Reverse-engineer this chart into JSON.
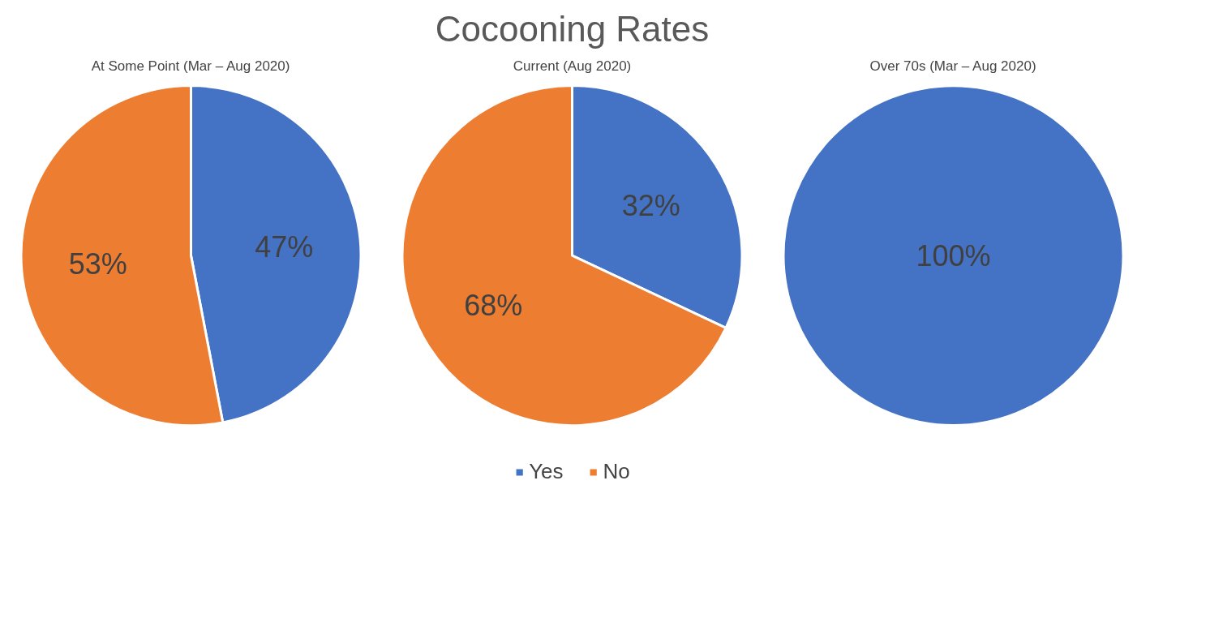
{
  "chart_data": [
    {
      "type": "pie",
      "subtitle": "At Some Point (Mar – Aug 2020)",
      "categories": [
        null,
        null
      ],
      "values": [
        47,
        53
      ],
      "colors": [
        "#4472c4",
        "#ed7d31"
      ],
      "value_labels": [
        "47%",
        "53%"
      ]
    },
    {
      "type": "pie",
      "title": "Cocooning Rates",
      "subtitle": "Current (Aug 2020)",
      "categories": [
        "Yes",
        "No"
      ],
      "values": [
        32,
        68
      ],
      "colors": [
        "#4472c4",
        "#ed7d31"
      ],
      "value_labels": [
        "32%",
        "68%"
      ],
      "legend": "bottom"
    },
    {
      "type": "pie",
      "subtitle": "Over 70s (Mar – Aug 2020)",
      "categories": [
        null
      ],
      "values": [
        100
      ],
      "colors": [
        "#4472c4"
      ],
      "value_labels": [
        "100%"
      ]
    }
  ]
}
